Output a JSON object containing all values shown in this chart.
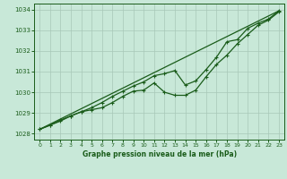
{
  "title": "Graphe pression niveau de la mer (hPa)",
  "bg_color": "#c8e8d8",
  "line_color": "#1a5c1a",
  "grid_color": "#a8c8b8",
  "xlim": [
    -0.5,
    23.5
  ],
  "ylim": [
    1027.7,
    1034.3
  ],
  "yticks": [
    1028,
    1029,
    1030,
    1031,
    1032,
    1033,
    1034
  ],
  "xticks": [
    0,
    1,
    2,
    3,
    4,
    5,
    6,
    7,
    8,
    9,
    10,
    11,
    12,
    13,
    14,
    15,
    16,
    17,
    18,
    19,
    20,
    21,
    22,
    23
  ],
  "line_straight": [
    1028.2,
    1028.45,
    1028.7,
    1028.95,
    1029.2,
    1029.45,
    1029.7,
    1029.95,
    1030.2,
    1030.45,
    1030.7,
    1030.95,
    1031.2,
    1031.45,
    1031.7,
    1031.95,
    1032.2,
    1032.45,
    1032.7,
    1032.95,
    1033.2,
    1033.45,
    1033.7,
    1033.95
  ],
  "line_upper": [
    1028.2,
    1028.4,
    1028.65,
    1028.85,
    1029.05,
    1029.25,
    1029.5,
    1029.8,
    1030.05,
    1030.3,
    1030.5,
    1030.8,
    1030.9,
    1031.05,
    1030.35,
    1030.55,
    1031.1,
    1031.7,
    1032.45,
    1032.55,
    1033.1,
    1033.35,
    1033.55,
    1033.95
  ],
  "line_lower": [
    1028.2,
    1028.4,
    1028.6,
    1028.85,
    1029.05,
    1029.15,
    1029.25,
    1029.5,
    1029.8,
    1030.05,
    1030.1,
    1030.45,
    1030.0,
    1029.85,
    1029.85,
    1030.1,
    1030.75,
    1031.35,
    1031.8,
    1032.35,
    1032.8,
    1033.25,
    1033.5,
    1033.9
  ]
}
